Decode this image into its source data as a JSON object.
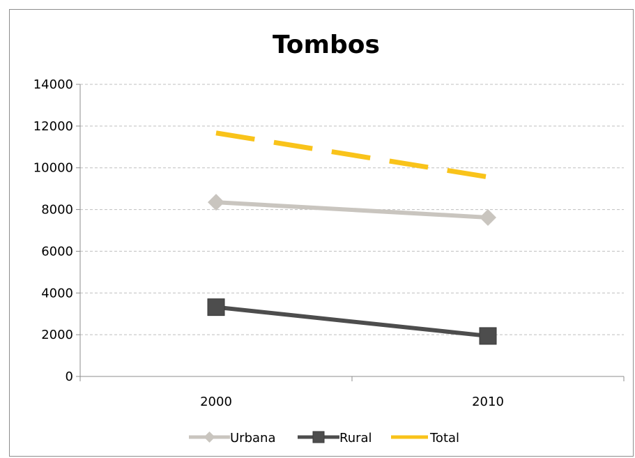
{
  "chart_data": {
    "type": "line",
    "title": "Tombos",
    "xlabel": "",
    "ylabel": "",
    "categories": [
      "2000",
      "2010"
    ],
    "ylim": [
      0,
      14000
    ],
    "yticks": [
      0,
      2000,
      4000,
      6000,
      8000,
      10000,
      12000,
      14000
    ],
    "grid": true,
    "legend": "bottom",
    "series": [
      {
        "name": "Urbana",
        "values": [
          8350,
          7620
        ],
        "color": "#c9c5bf",
        "marker": "diamond",
        "dash": "solid"
      },
      {
        "name": "Rural",
        "values": [
          3320,
          1940
        ],
        "color": "#4d4d4d",
        "marker": "square",
        "dash": "solid"
      },
      {
        "name": "Total",
        "values": [
          11670,
          9560
        ],
        "color": "#f9c31a",
        "marker": "none",
        "dash": "dashed"
      }
    ]
  }
}
